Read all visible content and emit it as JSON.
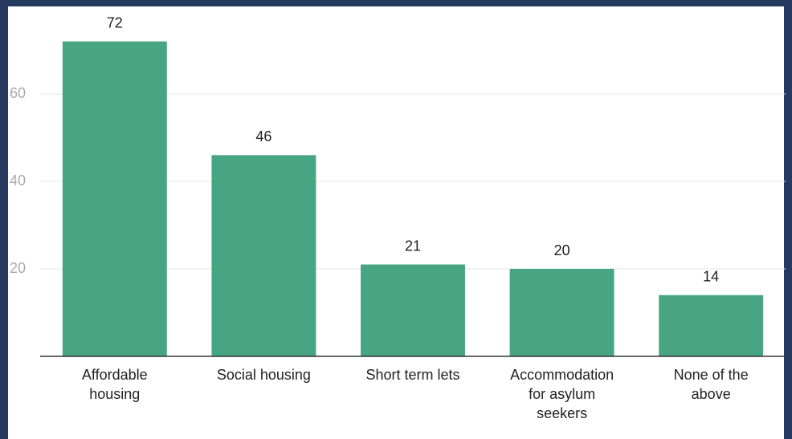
{
  "chart_data": {
    "type": "bar",
    "categories": [
      "Affordable housing",
      "Social housing",
      "Short term lets",
      "Accommodation for asylum seekers",
      "None of the above"
    ],
    "values": [
      72,
      46,
      21,
      20,
      14
    ],
    "color": "#47a584",
    "ylim": [
      0,
      80
    ],
    "yticks": [
      20,
      40,
      60
    ],
    "grid": true
  }
}
